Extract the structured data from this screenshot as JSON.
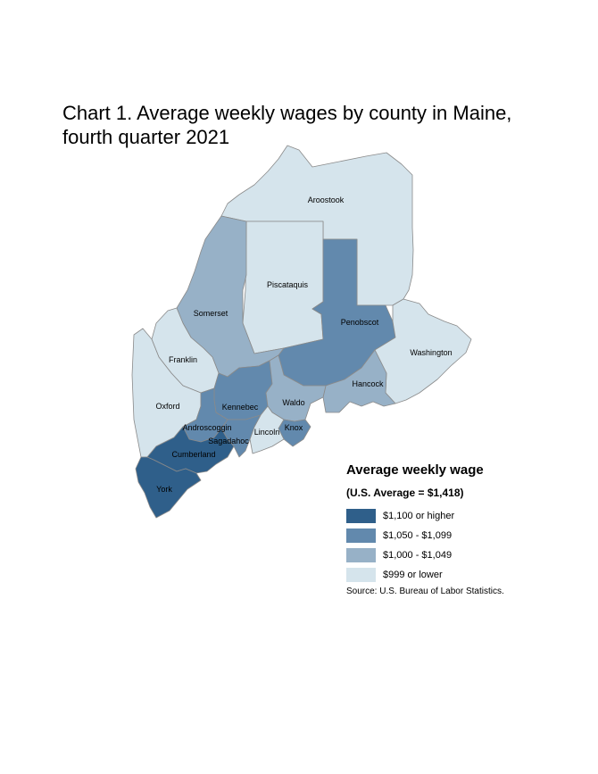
{
  "title_line1": "Chart 1. Average weekly wages by county in Maine,",
  "title_line2": "fourth quarter 2021",
  "colors": {
    "c1": "#2f5f8a",
    "c2": "#6289ad",
    "c3": "#97b1c7",
    "c4": "#d5e4ec"
  },
  "counties": [
    {
      "name": "Aroostook",
      "class": "$999 or lower"
    },
    {
      "name": "Piscataquis",
      "class": "$999 or lower"
    },
    {
      "name": "Penobscot",
      "class": "$1,050 - $1,099"
    },
    {
      "name": "Somerset",
      "class": "$1,000 - $1,049"
    },
    {
      "name": "Washington",
      "class": "$999 or lower"
    },
    {
      "name": "Franklin",
      "class": "$999 or lower"
    },
    {
      "name": "Hancock",
      "class": "$1,000 - $1,049"
    },
    {
      "name": "Oxford",
      "class": "$999 or lower"
    },
    {
      "name": "Kennebec",
      "class": "$1,050 - $1,099"
    },
    {
      "name": "Waldo",
      "class": "$1,000 - $1,049"
    },
    {
      "name": "Androscoggin",
      "class": "$1,050 - $1,099"
    },
    {
      "name": "Knox",
      "class": "$1,050 - $1,099"
    },
    {
      "name": "Lincoln",
      "class": "$999 or lower"
    },
    {
      "name": "Sagadahoc",
      "class": "$1,050 - $1,099"
    },
    {
      "name": "Cumberland",
      "class": "$1,100 or higher"
    },
    {
      "name": "York",
      "class": "$1,100 or higher"
    }
  ],
  "legend": {
    "title": "Average weekly wage",
    "subtitle": "(U.S. Average = $1,418)",
    "items": [
      {
        "label": "$1,100 or higher",
        "color": "#2f5f8a"
      },
      {
        "label": "$1,050 - $1,099",
        "color": "#6289ad"
      },
      {
        "label": "$1,000 - $1,049",
        "color": "#97b1c7"
      },
      {
        "label": "$999 or lower",
        "color": "#d5e4ec"
      }
    ]
  },
  "source": "Source: U.S. Bureau of Labor Statistics."
}
